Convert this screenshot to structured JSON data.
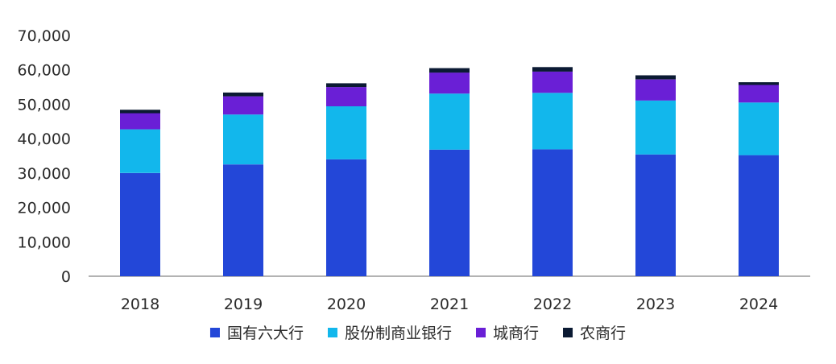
{
  "chart_data": {
    "type": "bar",
    "stacked": true,
    "title": "",
    "xlabel": "",
    "ylabel": "",
    "ylim": [
      0,
      70000
    ],
    "yticks": [
      "0",
      "10,000",
      "20,000",
      "30,000",
      "40,000",
      "50,000",
      "60,000",
      "70,000"
    ],
    "ytick_values": [
      0,
      10000,
      20000,
      30000,
      40000,
      50000,
      60000,
      70000
    ],
    "categories": [
      "2018",
      "2019",
      "2020",
      "2021",
      "2022",
      "2023",
      "2024"
    ],
    "series": [
      {
        "name": "国有六大行",
        "color": "#2347d8",
        "values": [
          30000,
          32500,
          34000,
          36800,
          36900,
          35400,
          35200
        ]
      },
      {
        "name": "股份制商业银行",
        "color": "#12b7ec",
        "values": [
          12700,
          14500,
          15400,
          16300,
          16400,
          15700,
          15300
        ]
      },
      {
        "name": "城商行",
        "color": "#6a1fd6",
        "values": [
          4700,
          5300,
          5600,
          6100,
          6200,
          6100,
          5100
        ]
      },
      {
        "name": "农商行",
        "color": "#0b1a33",
        "values": [
          1000,
          1100,
          1100,
          1300,
          1300,
          1200,
          800
        ]
      }
    ],
    "legend_position": "bottom",
    "grid": false
  }
}
